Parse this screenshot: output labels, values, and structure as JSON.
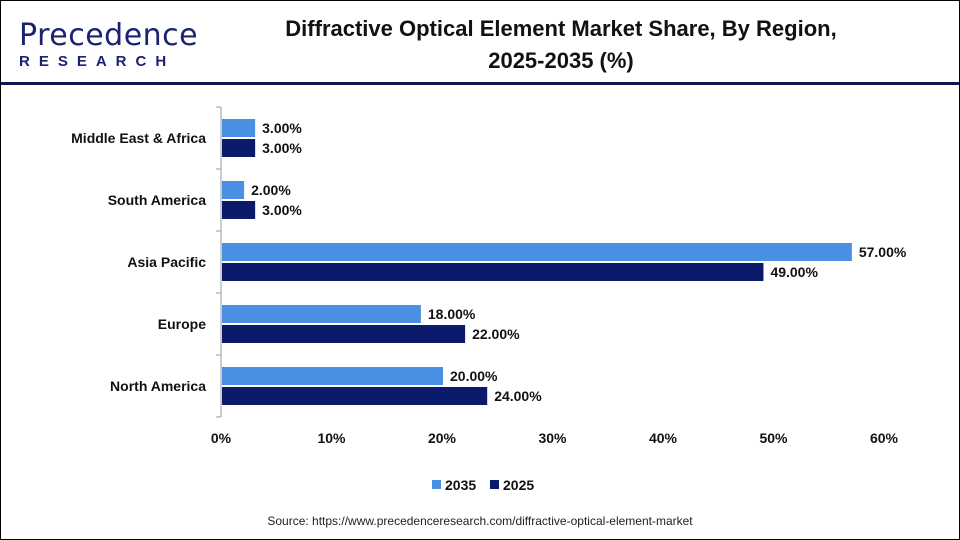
{
  "logo": {
    "line1": "Precedence",
    "line2": "RESEARCH"
  },
  "title_line1": "Diffractive Optical Element Market Share, By Region,",
  "title_line2": "2025-2035 (%)",
  "source": "Source: https://www.precedenceresearch.com/diffractive-optical-element-market",
  "chart_data": {
    "type": "bar",
    "orientation": "horizontal",
    "categories": [
      "Middle East & Africa",
      "South America",
      "Asia Pacific",
      "Europe",
      "North America"
    ],
    "series": [
      {
        "name": "2035",
        "color": "#4a90e2",
        "values": [
          3,
          2,
          57,
          18,
          20
        ],
        "labels": [
          "3.00%",
          "2.00%",
          "57.00%",
          "18.00%",
          "20.00%"
        ]
      },
      {
        "name": "2025",
        "color": "#0c1a6b",
        "values": [
          3,
          3,
          49,
          22,
          24
        ],
        "labels": [
          "3.00%",
          "3.00%",
          "49.00%",
          "22.00%",
          "24.00%"
        ]
      }
    ],
    "xlim": [
      0,
      60
    ],
    "xticks": [
      "0%",
      "10%",
      "20%",
      "30%",
      "40%",
      "50%",
      "60%"
    ],
    "grid": false,
    "legend": "bottom"
  }
}
